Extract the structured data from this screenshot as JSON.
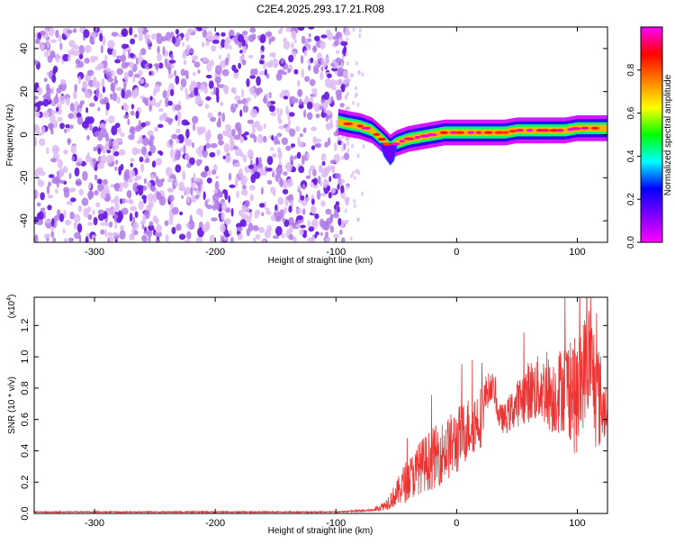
{
  "title": "C2E4.2025.293.17.21.R08",
  "chart_data": [
    {
      "type": "heatmap",
      "name": "spectrogram",
      "xlabel": "Height of straight line (km)",
      "ylabel": "Frequency (Hz)",
      "xlim": [
        -350,
        125
      ],
      "ylim": [
        -50,
        50
      ],
      "xticks": [
        -300,
        -200,
        -100,
        0,
        100
      ],
      "yticks": [
        -40,
        -20,
        0,
        20,
        40
      ],
      "noise_region_x": [
        -350,
        -95
      ],
      "signal_track": {
        "x": [
          -98,
          -90,
          -80,
          -70,
          -60,
          -55,
          -50,
          -45,
          -40,
          -30,
          -20,
          -10,
          0,
          10,
          20,
          30,
          40,
          50,
          60,
          70,
          80,
          90,
          100,
          110,
          120,
          125
        ],
        "freq": [
          6,
          5,
          4,
          2,
          -3,
          -6,
          -4,
          -3,
          -2,
          -1,
          0,
          1,
          1,
          1,
          1,
          1,
          1,
          2,
          2,
          2,
          2,
          2,
          3,
          3,
          3,
          3
        ]
      },
      "dip_x": [
        -60,
        -55,
        -52
      ],
      "dip_freq": [
        -10,
        -14,
        -12
      ],
      "colorbar": {
        "label": "Normalized spectral amplitude",
        "ticks": [
          0.0,
          0.2,
          0.4,
          0.6,
          0.8
        ],
        "range": [
          0,
          1
        ],
        "colormap": [
          "#ff00ff",
          "#7f00ff",
          "#0000ff",
          "#00ffff",
          "#00ff00",
          "#ffff00",
          "#ff8000",
          "#ff0000",
          "#ff00ff"
        ]
      }
    },
    {
      "type": "line",
      "name": "snr",
      "xlabel": "Height of straight line (km)",
      "ylabel": "SNR (10 * v/v)",
      "yscale_label": "(x10",
      "yscale_exp": "4",
      "yscale_close": ")",
      "xlim": [
        -350,
        125
      ],
      "ylim": [
        0,
        1.38
      ],
      "xticks": [
        -300,
        -200,
        -100,
        0,
        100
      ],
      "yticks": [
        0.0,
        0.2,
        0.4,
        0.6,
        0.8,
        1.0,
        1.2
      ],
      "color": "#ee3333",
      "envelope": {
        "x": [
          -350,
          -100,
          -70,
          -60,
          -50,
          -45,
          -40,
          -35,
          -30,
          -20,
          -10,
          0,
          10,
          20,
          25,
          30,
          35,
          40,
          50,
          60,
          70,
          80,
          90,
          95,
          100,
          105,
          110,
          115,
          120,
          125
        ],
        "mean": [
          0.01,
          0.01,
          0.02,
          0.05,
          0.12,
          0.18,
          0.22,
          0.25,
          0.3,
          0.35,
          0.4,
          0.46,
          0.55,
          0.62,
          0.78,
          0.82,
          0.62,
          0.6,
          0.7,
          0.78,
          0.8,
          0.75,
          0.82,
          0.8,
          0.7,
          0.9,
          1.0,
          0.8,
          0.7,
          0.6
        ],
        "amp": [
          0.004,
          0.004,
          0.01,
          0.03,
          0.08,
          0.12,
          0.14,
          0.15,
          0.17,
          0.2,
          0.2,
          0.22,
          0.2,
          0.2,
          0.12,
          0.08,
          0.08,
          0.1,
          0.15,
          0.2,
          0.22,
          0.25,
          0.3,
          0.35,
          0.4,
          0.35,
          0.38,
          0.4,
          0.3,
          0.05
        ]
      }
    }
  ]
}
